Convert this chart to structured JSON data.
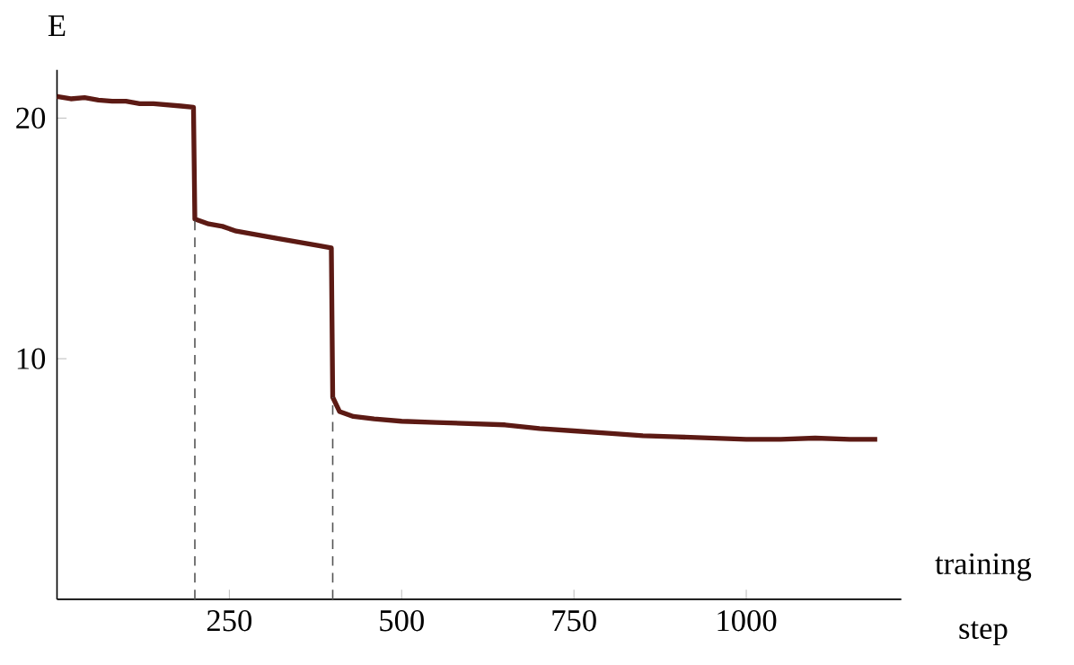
{
  "chart_data": {
    "type": "line",
    "xlabel": "training step",
    "ylabel": "E",
    "xlim": [
      0,
      1225
    ],
    "ylim": [
      0,
      22
    ],
    "xticks": [
      250,
      500,
      750,
      1000
    ],
    "yticks": [
      10,
      20
    ],
    "grid": false,
    "marker": "none",
    "line_style": "solid",
    "ref_lines": [
      {
        "axis": "x",
        "value": 200,
        "line_style": "dashed",
        "color": "#555555"
      },
      {
        "axis": "x",
        "value": 400,
        "line_style": "dashed",
        "color": "#555555"
      }
    ],
    "series": [
      {
        "color": "#5c1a14",
        "x": [
          0,
          20,
          40,
          60,
          80,
          100,
          120,
          140,
          160,
          180,
          198,
          200,
          220,
          240,
          260,
          280,
          300,
          320,
          340,
          360,
          380,
          398,
          400,
          410,
          430,
          460,
          500,
          550,
          600,
          650,
          700,
          750,
          800,
          850,
          900,
          950,
          1000,
          1050,
          1100,
          1150,
          1190
        ],
        "values": [
          20.9,
          20.8,
          20.85,
          20.75,
          20.7,
          20.7,
          20.6,
          20.6,
          20.55,
          20.5,
          20.45,
          15.8,
          15.6,
          15.5,
          15.3,
          15.2,
          15.1,
          15.0,
          14.9,
          14.8,
          14.7,
          14.6,
          8.4,
          7.8,
          7.6,
          7.5,
          7.4,
          7.35,
          7.3,
          7.25,
          7.1,
          7.0,
          6.9,
          6.8,
          6.75,
          6.7,
          6.65,
          6.65,
          6.7,
          6.65,
          6.65
        ]
      }
    ]
  }
}
